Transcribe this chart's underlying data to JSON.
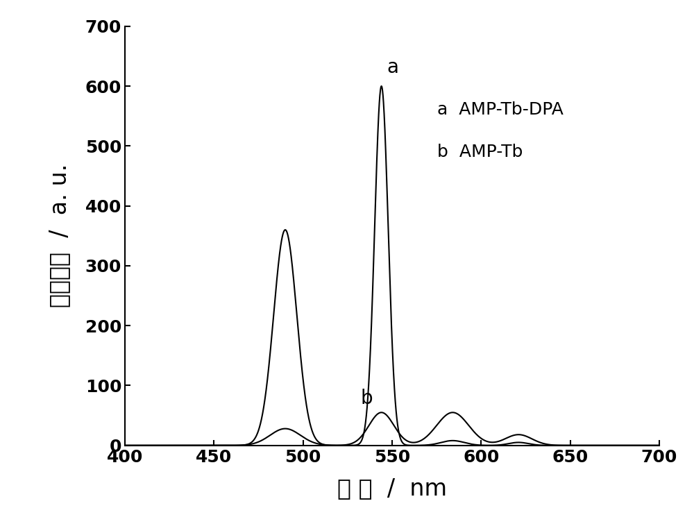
{
  "xlim": [
    400,
    700
  ],
  "ylim": [
    0,
    700
  ],
  "xticks": [
    400,
    450,
    500,
    550,
    600,
    650,
    700
  ],
  "yticks": [
    0,
    100,
    200,
    300,
    400,
    500,
    600,
    700
  ],
  "xlabel": "波 长  /  nm",
  "ylabel_chars": [
    "发",
    "光",
    "强",
    "度",
    "/",
    "a. u."
  ],
  "legend_a": "a  AMP-Tb-DPA",
  "legend_b": "b  AMP-Tb",
  "curve_a_label": "a",
  "curve_b_label": "b",
  "bg_color": "#ffffff",
  "line_color": "#000000",
  "tick_fontsize": 18,
  "label_fontsize": 24,
  "ylabel_fontsize": 24,
  "legend_fontsize": 18,
  "annot_fontsize": 20
}
